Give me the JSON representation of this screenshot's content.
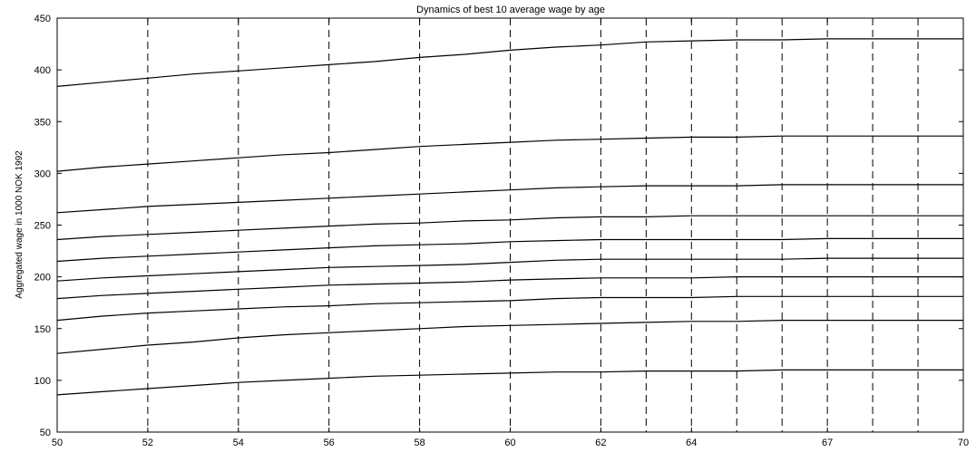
{
  "chart_data": {
    "type": "line",
    "title": "Dynamics of best 10 average wage by age",
    "xlabel": "",
    "ylabel": "Aggregated wage in 1000 NOK 1992",
    "xlim": [
      50,
      70
    ],
    "ylim": [
      50,
      450
    ],
    "grid": false,
    "legend": "none",
    "y_ticks": [
      50,
      100,
      150,
      200,
      250,
      300,
      350,
      400,
      450
    ],
    "x_ticks": [
      {
        "pos": 50,
        "label": "50"
      },
      {
        "pos": 52,
        "label": "52"
      },
      {
        "pos": 54,
        "label": "54"
      },
      {
        "pos": 56,
        "label": "56"
      },
      {
        "pos": 58,
        "label": "58"
      },
      {
        "pos": 60,
        "label": "60"
      },
      {
        "pos": 62,
        "label": "62"
      },
      {
        "pos": 64,
        "label": "64"
      },
      {
        "pos": 67,
        "label": "67"
      },
      {
        "pos": 70,
        "label": "70"
      }
    ],
    "dashed_verticals": [
      52,
      54,
      56,
      58,
      60,
      62,
      63,
      64,
      65,
      66,
      67,
      68,
      69
    ],
    "x": [
      50,
      51,
      52,
      53,
      54,
      55,
      56,
      57,
      58,
      59,
      60,
      61,
      62,
      63,
      64,
      65,
      66,
      67,
      68,
      69,
      70
    ],
    "series": [
      {
        "values": [
          384,
          388,
          392,
          396,
          399,
          402,
          405,
          408,
          412,
          415,
          419,
          422,
          424,
          427,
          428,
          429,
          429,
          430,
          430,
          430,
          430
        ]
      },
      {
        "values": [
          302,
          306,
          309,
          312,
          315,
          318,
          320,
          323,
          326,
          328,
          330,
          332,
          333,
          334,
          335,
          335,
          336,
          336,
          336,
          336,
          336
        ]
      },
      {
        "values": [
          262,
          265,
          268,
          270,
          272,
          274,
          276,
          278,
          280,
          282,
          284,
          286,
          287,
          288,
          288,
          288,
          289,
          289,
          289,
          289,
          289
        ]
      },
      {
        "values": [
          236,
          239,
          241,
          243,
          245,
          247,
          249,
          251,
          252,
          254,
          255,
          257,
          258,
          258,
          259,
          259,
          259,
          259,
          259,
          259,
          259
        ]
      },
      {
        "values": [
          215,
          218,
          220,
          222,
          224,
          226,
          228,
          230,
          231,
          232,
          234,
          235,
          236,
          236,
          236,
          236,
          236,
          237,
          237,
          237,
          237
        ]
      },
      {
        "values": [
          196,
          199,
          201,
          203,
          205,
          207,
          209,
          210,
          211,
          212,
          214,
          216,
          217,
          217,
          217,
          217,
          217,
          218,
          218,
          218,
          218
        ]
      },
      {
        "values": [
          179,
          182,
          184,
          186,
          188,
          190,
          192,
          193,
          194,
          195,
          197,
          198,
          199,
          199,
          199,
          200,
          200,
          200,
          200,
          200,
          200
        ]
      },
      {
        "values": [
          158,
          162,
          165,
          167,
          169,
          171,
          172,
          174,
          175,
          176,
          177,
          179,
          180,
          180,
          180,
          181,
          181,
          181,
          181,
          181,
          181
        ]
      },
      {
        "values": [
          126,
          130,
          134,
          137,
          141,
          144,
          146,
          148,
          150,
          152,
          153,
          154,
          155,
          156,
          157,
          157,
          158,
          158,
          158,
          158,
          158
        ]
      },
      {
        "values": [
          86,
          89,
          92,
          95,
          98,
          100,
          102,
          104,
          105,
          106,
          107,
          108,
          108,
          109,
          109,
          109,
          110,
          110,
          110,
          110,
          110
        ]
      }
    ]
  }
}
